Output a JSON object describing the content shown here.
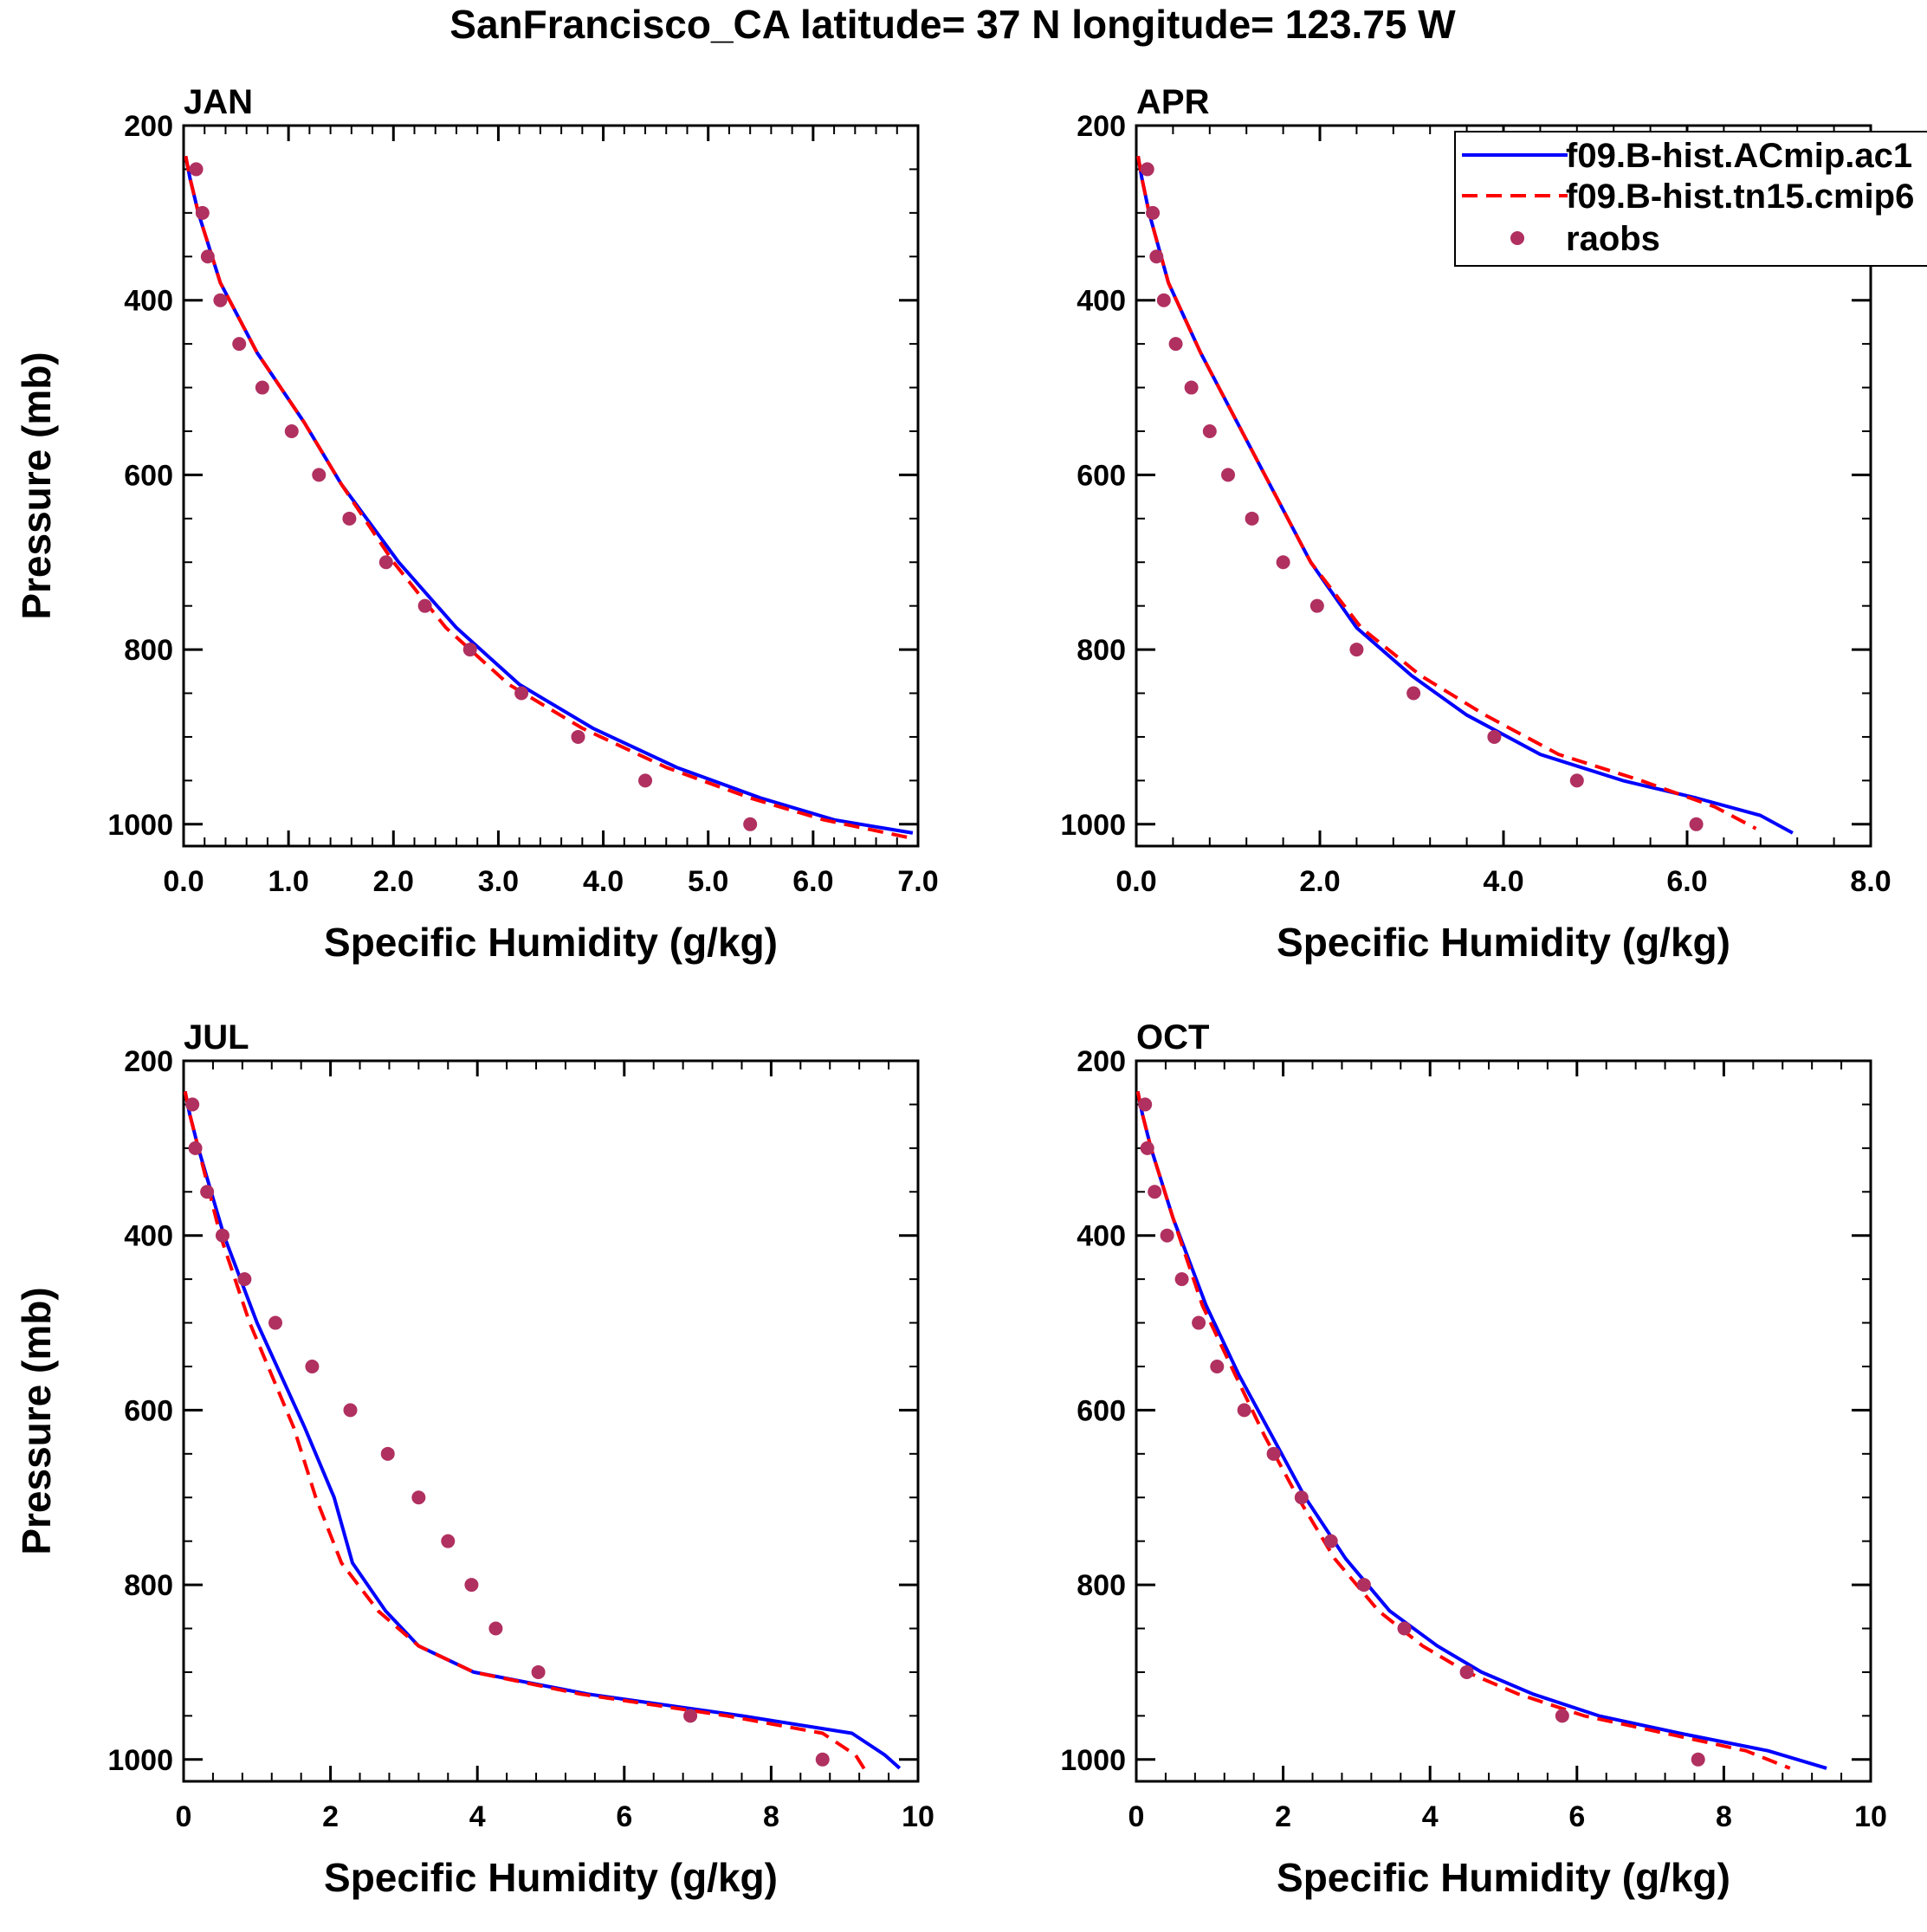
{
  "title": "SanFrancisco_CA  latitude= 37 N longitude= 123.75 W",
  "legend": {
    "placement": "top-right of APR panel",
    "entries": [
      {
        "label": "f09.B-hist.ACmip.ac1",
        "style": "solid",
        "color": "#0000ff"
      },
      {
        "label": "f09.B-hist.tn15.cmip6",
        "style": "dashed",
        "color": "#ff0000"
      },
      {
        "label": "raobs",
        "style": "marker",
        "color": "#b03060"
      }
    ]
  },
  "colors": {
    "model1": "#0000ff",
    "model2": "#ff0000",
    "raobs": "#b03060"
  },
  "chart_data": [
    {
      "type": "line",
      "title": "JAN",
      "xlabel": "Specific Humidity (g/kg)",
      "ylabel": "Pressure (mb)",
      "xlim": [
        0,
        7
      ],
      "ylim": [
        1000,
        200
      ],
      "y_reversed": true,
      "xticks": [
        0,
        1,
        2,
        3,
        4,
        5,
        6,
        7
      ],
      "xtick_labels": [
        "0.0",
        "1.0",
        "2.0",
        "3.0",
        "4.0",
        "5.0",
        "6.0",
        "7.0"
      ],
      "yticks": [
        200,
        400,
        600,
        800,
        1000
      ],
      "ytick_labels": [
        "200",
        "400",
        "600",
        "800",
        "1000"
      ],
      "series": [
        {
          "name": "f09.B-hist.ACmip.ac1",
          "x": [
            0.02,
            0.06,
            0.14,
            0.35,
            0.7,
            1.15,
            1.5,
            2.05,
            2.6,
            3.2,
            3.9,
            4.7,
            5.5,
            6.2,
            6.95
          ],
          "y": [
            235,
            260,
            300,
            380,
            460,
            540,
            610,
            700,
            775,
            840,
            890,
            935,
            970,
            995,
            1010
          ]
        },
        {
          "name": "f09.B-hist.tn15.cmip6",
          "x": [
            0.02,
            0.06,
            0.14,
            0.35,
            0.7,
            1.15,
            1.5,
            2.0,
            2.5,
            3.1,
            3.8,
            4.6,
            5.4,
            6.1,
            6.9
          ],
          "y": [
            235,
            260,
            300,
            380,
            460,
            540,
            610,
            700,
            775,
            840,
            890,
            935,
            970,
            995,
            1015
          ]
        },
        {
          "name": "raobs",
          "x": [
            0.12,
            0.18,
            0.23,
            0.35,
            0.53,
            0.75,
            1.03,
            1.29,
            1.58,
            1.93,
            2.3,
            2.73,
            3.22,
            3.76,
            4.4,
            5.4
          ],
          "y": [
            250,
            300,
            350,
            400,
            450,
            500,
            550,
            600,
            650,
            700,
            750,
            800,
            850,
            900,
            950,
            1000
          ]
        }
      ]
    },
    {
      "type": "line",
      "title": "APR",
      "xlabel": "Specific Humidity (g/kg)",
      "ylabel": "",
      "xlim": [
        0,
        8
      ],
      "ylim": [
        1000,
        200
      ],
      "y_reversed": true,
      "xticks": [
        0,
        2,
        4,
        6,
        8
      ],
      "xtick_labels": [
        "0.0",
        "2.0",
        "4.0",
        "6.0",
        "8.0"
      ],
      "yticks": [
        200,
        400,
        600,
        800,
        1000
      ],
      "ytick_labels": [
        "200",
        "400",
        "600",
        "800",
        "1000"
      ],
      "series": [
        {
          "name": "f09.B-hist.ACmip.ac1",
          "x": [
            0.02,
            0.06,
            0.14,
            0.35,
            0.7,
            1.1,
            1.45,
            1.9,
            2.4,
            3.0,
            3.6,
            4.4,
            5.3,
            6.1,
            6.8,
            7.15
          ],
          "y": [
            235,
            260,
            300,
            380,
            460,
            540,
            610,
            700,
            775,
            830,
            875,
            920,
            950,
            970,
            990,
            1010
          ]
        },
        {
          "name": "f09.B-hist.tn15.cmip6",
          "x": [
            0.02,
            0.06,
            0.14,
            0.35,
            0.7,
            1.1,
            1.45,
            1.9,
            2.45,
            3.1,
            3.8,
            4.6,
            5.5,
            6.3,
            6.75
          ],
          "y": [
            235,
            260,
            300,
            380,
            460,
            540,
            610,
            700,
            775,
            830,
            875,
            920,
            950,
            980,
            1005
          ]
        },
        {
          "name": "raobs",
          "x": [
            0.12,
            0.18,
            0.22,
            0.3,
            0.43,
            0.6,
            0.8,
            1.0,
            1.26,
            1.6,
            1.97,
            2.4,
            3.02,
            3.9,
            4.8,
            6.1
          ],
          "y": [
            250,
            300,
            350,
            400,
            450,
            500,
            550,
            600,
            650,
            700,
            750,
            800,
            850,
            900,
            950,
            1000
          ]
        }
      ]
    },
    {
      "type": "line",
      "title": "JUL",
      "xlabel": "Specific Humidity (g/kg)",
      "ylabel": "Pressure (mb)",
      "xlim": [
        0,
        10
      ],
      "ylim": [
        1000,
        200
      ],
      "y_reversed": true,
      "xticks": [
        0,
        2,
        4,
        6,
        8,
        10
      ],
      "xtick_labels": [
        "0",
        "2",
        "4",
        "6",
        "8",
        "10"
      ],
      "yticks": [
        200,
        400,
        600,
        800,
        1000
      ],
      "ytick_labels": [
        "200",
        "400",
        "600",
        "800",
        "1000"
      ],
      "series": [
        {
          "name": "f09.B-hist.ACmip.ac1",
          "x": [
            0.02,
            0.08,
            0.2,
            0.55,
            1.0,
            1.65,
            2.05,
            2.3,
            2.75,
            3.2,
            3.95,
            5.5,
            7.6,
            9.1,
            9.55,
            9.75
          ],
          "y": [
            235,
            260,
            300,
            400,
            500,
            620,
            700,
            775,
            830,
            870,
            900,
            925,
            950,
            970,
            995,
            1010
          ]
        },
        {
          "name": "f09.B-hist.tn15.cmip6",
          "x": [
            0.02,
            0.08,
            0.2,
            0.5,
            0.9,
            1.5,
            1.8,
            2.15,
            2.65,
            3.2,
            3.95,
            5.4,
            7.4,
            8.7,
            9.15,
            9.3
          ],
          "y": [
            235,
            260,
            300,
            400,
            500,
            620,
            700,
            775,
            830,
            870,
            900,
            925,
            950,
            970,
            995,
            1015
          ]
        },
        {
          "name": "raobs",
          "x": [
            0.12,
            0.16,
            0.32,
            0.53,
            0.83,
            1.25,
            1.75,
            2.27,
            2.78,
            3.2,
            3.6,
            3.92,
            4.25,
            4.83,
            6.9,
            8.7
          ],
          "y": [
            250,
            300,
            350,
            400,
            450,
            500,
            550,
            600,
            650,
            700,
            750,
            800,
            850,
            900,
            950,
            1000
          ]
        }
      ]
    },
    {
      "type": "line",
      "title": "OCT",
      "xlabel": "Specific Humidity (g/kg)",
      "ylabel": "",
      "xlim": [
        0,
        10
      ],
      "ylim": [
        1000,
        200
      ],
      "y_reversed": true,
      "xticks": [
        0,
        2,
        4,
        6,
        8,
        10
      ],
      "xtick_labels": [
        "0",
        "2",
        "4",
        "6",
        "8",
        "10"
      ],
      "yticks": [
        200,
        400,
        600,
        800,
        1000
      ],
      "ytick_labels": [
        "200",
        "400",
        "600",
        "800",
        "1000"
      ],
      "series": [
        {
          "name": "f09.B-hist.ACmip.ac1",
          "x": [
            0.02,
            0.08,
            0.2,
            0.5,
            0.95,
            1.4,
            1.85,
            2.3,
            2.85,
            3.45,
            4.1,
            4.7,
            5.4,
            6.3,
            7.4,
            8.6,
            9.4
          ],
          "y": [
            235,
            260,
            300,
            380,
            480,
            560,
            630,
            700,
            770,
            830,
            870,
            900,
            925,
            950,
            970,
            990,
            1010
          ]
        },
        {
          "name": "f09.B-hist.tn15.cmip6",
          "x": [
            0.02,
            0.08,
            0.2,
            0.5,
            0.9,
            1.35,
            1.75,
            2.2,
            2.7,
            3.3,
            3.9,
            4.5,
            5.2,
            6.1,
            7.2,
            8.3,
            8.9
          ],
          "y": [
            235,
            260,
            300,
            380,
            480,
            560,
            630,
            700,
            770,
            830,
            870,
            900,
            925,
            950,
            970,
            990,
            1010
          ]
        },
        {
          "name": "raobs",
          "x": [
            0.12,
            0.15,
            0.25,
            0.42,
            0.62,
            0.85,
            1.1,
            1.47,
            1.87,
            2.25,
            2.65,
            3.1,
            3.65,
            4.5,
            5.8,
            7.65
          ],
          "y": [
            250,
            300,
            350,
            400,
            450,
            500,
            550,
            600,
            650,
            700,
            750,
            800,
            850,
            900,
            950,
            1000
          ]
        }
      ]
    }
  ]
}
